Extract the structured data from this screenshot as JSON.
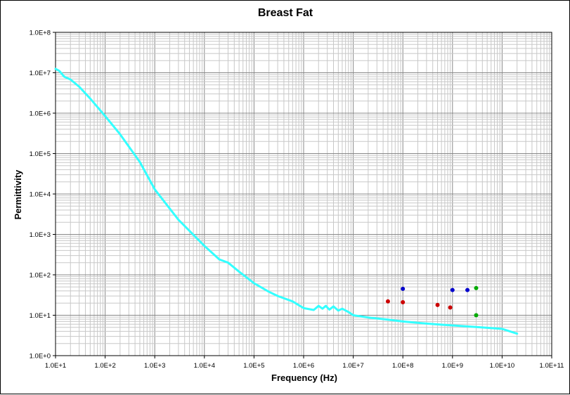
{
  "chart_data": {
    "type": "scatter",
    "title": "Breast Fat",
    "xlabel": "Frequency (Hz)",
    "ylabel": "Permittivity",
    "x_scale": "log",
    "y_scale": "log",
    "xlim": [
      10,
      100000000000
    ],
    "ylim": [
      1,
      100000000
    ],
    "grid": true,
    "x_ticks": [
      10,
      100,
      1000,
      10000,
      100000,
      1000000,
      10000000,
      100000000,
      1000000000,
      10000000000,
      100000000000
    ],
    "x_tick_labels": [
      "1.0E+1",
      "1.0E+2",
      "1.0E+3",
      "1.0E+4",
      "1.0E+5",
      "1.0E+6",
      "1.0E+7",
      "1.0E+8",
      "1.0E+9",
      "1.0E+10",
      "1.0E+11"
    ],
    "y_ticks": [
      1,
      10,
      100,
      1000,
      10000,
      100000,
      1000000,
      10000000,
      100000000
    ],
    "y_tick_labels": [
      "1.0E+0",
      "1.0E+1",
      "1.0E+2",
      "1.0E+3",
      "1.0E+4",
      "1.0E+5",
      "1.0E+6",
      "1.0E+7",
      "1.0E+8"
    ],
    "series": [
      {
        "color": "#33ffff",
        "style": "line",
        "points": [
          [
            10,
            12500000
          ],
          [
            12,
            11000000
          ],
          [
            15,
            8000000
          ],
          [
            20,
            6800000
          ],
          [
            30,
            4500000
          ],
          [
            50,
            2300000
          ],
          [
            100,
            850000
          ],
          [
            200,
            300000
          ],
          [
            500,
            62000
          ],
          [
            1000,
            13000
          ],
          [
            3000,
            2300
          ],
          [
            10000,
            520
          ],
          [
            20000,
            240
          ],
          [
            30000,
            200
          ],
          [
            50000,
            120
          ],
          [
            100000,
            62
          ],
          [
            200000,
            38
          ],
          [
            300000,
            30
          ],
          [
            600000,
            22
          ],
          [
            1000000,
            15
          ],
          [
            1600000,
            13.5
          ],
          [
            2000000,
            17
          ],
          [
            2400000,
            14.5
          ],
          [
            2800000,
            17
          ],
          [
            3300000,
            13.8
          ],
          [
            4000000,
            16.5
          ],
          [
            5000000,
            13
          ],
          [
            6000000,
            14.5
          ],
          [
            8000000,
            12
          ],
          [
            10000000,
            10
          ],
          [
            20000000,
            8.8
          ],
          [
            50000000,
            7.8
          ],
          [
            100000000,
            7
          ],
          [
            300000000,
            6.2
          ],
          [
            1000000000,
            5.6
          ],
          [
            3000000000,
            5.1
          ],
          [
            10000000000,
            4.6
          ],
          [
            20000000000,
            3.5
          ]
        ]
      },
      {
        "color": "#cc0000",
        "style": "markers",
        "points": [
          [
            50000000,
            22
          ],
          [
            100000000,
            21
          ],
          [
            500000000,
            18
          ],
          [
            900000000,
            15.5
          ]
        ]
      },
      {
        "color": "#0000cc",
        "style": "markers",
        "points": [
          [
            100000000,
            45
          ],
          [
            1000000000,
            42
          ],
          [
            2000000000,
            42
          ]
        ]
      },
      {
        "color": "#00aa00",
        "style": "markers",
        "points": [
          [
            3000000000,
            47
          ],
          [
            3000000000,
            10
          ]
        ]
      }
    ]
  }
}
